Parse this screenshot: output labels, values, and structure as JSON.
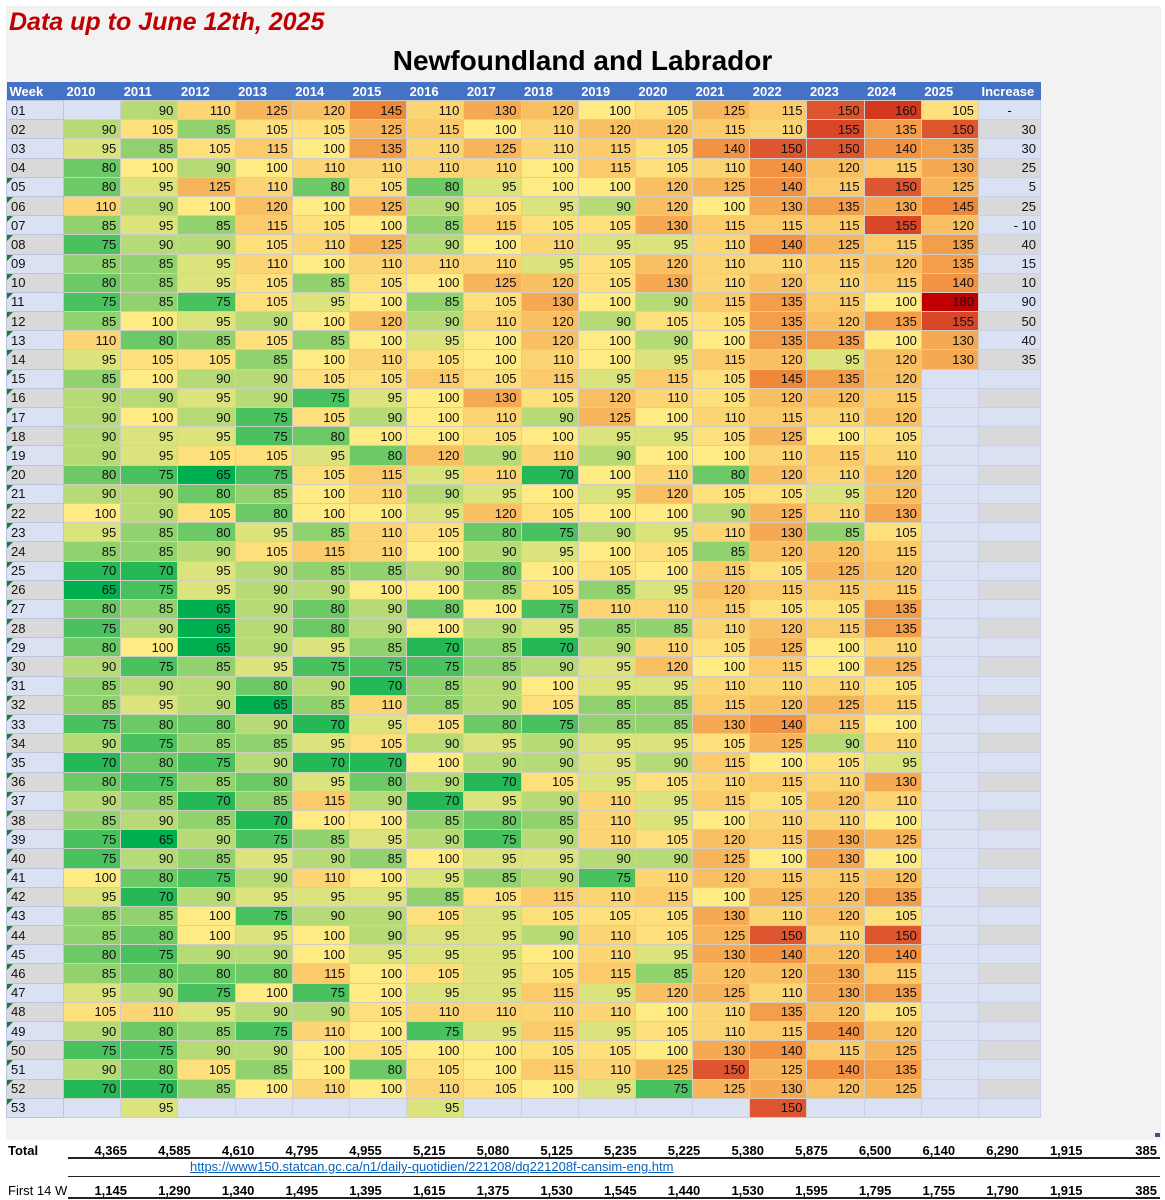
{
  "subtitle": "Data up to June 12th, 2025",
  "title": "Newfoundland and Labrador",
  "colors": {
    "header_bg": "#4472c4",
    "subtitle": "#c00000",
    "link": "#0563c1",
    "scale_low": "#00b050",
    "scale_mid": "#ffeb84",
    "scale_high": "#c00000"
  },
  "headers": [
    "Week",
    "2010",
    "2011",
    "2012",
    "2013",
    "2014",
    "2015",
    "2016",
    "2017",
    "2018",
    "2019",
    "2020",
    "2021",
    "2022",
    "2023",
    "2024",
    "2025",
    "Increase"
  ],
  "rows": [
    {
      "week": "01",
      "values": [
        null,
        90,
        110,
        125,
        120,
        145,
        110,
        130,
        120,
        100,
        105,
        125,
        115,
        150,
        160,
        105
      ],
      "increase": "-"
    },
    {
      "week": "02",
      "values": [
        90,
        105,
        85,
        105,
        105,
        125,
        115,
        100,
        110,
        120,
        120,
        115,
        110,
        155,
        135,
        150
      ],
      "increase": "30"
    },
    {
      "week": "03",
      "values": [
        95,
        85,
        105,
        115,
        100,
        135,
        110,
        125,
        110,
        115,
        105,
        140,
        150,
        150,
        140,
        135
      ],
      "increase": "30"
    },
    {
      "week": "04",
      "values": [
        80,
        100,
        90,
        100,
        110,
        110,
        110,
        110,
        100,
        115,
        105,
        110,
        140,
        120,
        115,
        130
      ],
      "increase": "25"
    },
    {
      "week": "05",
      "values": [
        80,
        95,
        125,
        110,
        80,
        105,
        80,
        95,
        100,
        100,
        120,
        125,
        140,
        115,
        150,
        125
      ],
      "increase": "5"
    },
    {
      "week": "06",
      "values": [
        110,
        90,
        100,
        120,
        100,
        125,
        90,
        105,
        95,
        90,
        120,
        100,
        130,
        135,
        130,
        145
      ],
      "increase": "25"
    },
    {
      "week": "07",
      "values": [
        85,
        95,
        85,
        115,
        105,
        100,
        85,
        115,
        105,
        105,
        130,
        115,
        115,
        115,
        155,
        120
      ],
      "increase": "- 10"
    },
    {
      "week": "08",
      "values": [
        75,
        90,
        90,
        105,
        110,
        125,
        90,
        100,
        110,
        95,
        95,
        110,
        140,
        125,
        115,
        135
      ],
      "increase": "40"
    },
    {
      "week": "09",
      "values": [
        85,
        85,
        95,
        110,
        100,
        110,
        110,
        110,
        95,
        105,
        120,
        110,
        110,
        115,
        120,
        135
      ],
      "increase": "15"
    },
    {
      "week": "10",
      "values": [
        80,
        85,
        95,
        105,
        85,
        105,
        100,
        125,
        120,
        105,
        130,
        110,
        120,
        110,
        115,
        140
      ],
      "increase": "10"
    },
    {
      "week": "11",
      "values": [
        75,
        85,
        75,
        105,
        95,
        100,
        85,
        105,
        130,
        100,
        90,
        115,
        135,
        115,
        100,
        180
      ],
      "increase": "90"
    },
    {
      "week": "12",
      "values": [
        85,
        100,
        95,
        90,
        100,
        120,
        90,
        110,
        120,
        90,
        105,
        105,
        135,
        120,
        135,
        155
      ],
      "increase": "50"
    },
    {
      "week": "13",
      "values": [
        110,
        80,
        85,
        105,
        85,
        100,
        95,
        100,
        120,
        100,
        90,
        100,
        135,
        135,
        100,
        130
      ],
      "increase": "40"
    },
    {
      "week": "14",
      "values": [
        95,
        105,
        105,
        85,
        100,
        110,
        105,
        100,
        110,
        100,
        95,
        115,
        120,
        95,
        120,
        130
      ],
      "increase": "35"
    },
    {
      "week": "15",
      "values": [
        85,
        100,
        90,
        90,
        105,
        105,
        115,
        105,
        115,
        95,
        115,
        105,
        145,
        135,
        120,
        null
      ],
      "increase": ""
    },
    {
      "week": "16",
      "values": [
        90,
        90,
        95,
        90,
        75,
        95,
        100,
        130,
        105,
        120,
        110,
        105,
        120,
        120,
        115,
        null
      ],
      "increase": ""
    },
    {
      "week": "17",
      "values": [
        90,
        100,
        90,
        75,
        105,
        90,
        100,
        110,
        90,
        125,
        100,
        110,
        115,
        110,
        120,
        null
      ],
      "increase": ""
    },
    {
      "week": "18",
      "values": [
        90,
        95,
        95,
        75,
        80,
        100,
        100,
        105,
        100,
        95,
        95,
        105,
        125,
        100,
        105,
        null
      ],
      "increase": ""
    },
    {
      "week": "19",
      "values": [
        90,
        95,
        105,
        105,
        95,
        80,
        120,
        90,
        110,
        90,
        100,
        100,
        110,
        115,
        110,
        null
      ],
      "increase": ""
    },
    {
      "week": "20",
      "values": [
        80,
        75,
        65,
        75,
        105,
        115,
        95,
        110,
        70,
        100,
        110,
        80,
        120,
        110,
        120,
        null
      ],
      "increase": ""
    },
    {
      "week": "21",
      "values": [
        90,
        90,
        80,
        85,
        100,
        110,
        90,
        95,
        100,
        95,
        120,
        105,
        105,
        95,
        120,
        null
      ],
      "increase": ""
    },
    {
      "week": "22",
      "values": [
        100,
        90,
        105,
        80,
        100,
        100,
        95,
        120,
        105,
        100,
        100,
        90,
        125,
        110,
        130,
        null
      ],
      "increase": ""
    },
    {
      "week": "23",
      "values": [
        95,
        85,
        80,
        95,
        85,
        110,
        105,
        80,
        75,
        90,
        95,
        110,
        130,
        85,
        105,
        null
      ],
      "increase": ""
    },
    {
      "week": "24",
      "values": [
        85,
        85,
        90,
        105,
        115,
        110,
        100,
        90,
        95,
        100,
        105,
        85,
        120,
        120,
        115,
        null
      ],
      "increase": ""
    },
    {
      "week": "25",
      "values": [
        70,
        70,
        95,
        90,
        85,
        85,
        90,
        80,
        100,
        105,
        100,
        115,
        105,
        125,
        120,
        null
      ],
      "increase": ""
    },
    {
      "week": "26",
      "values": [
        65,
        75,
        95,
        90,
        90,
        100,
        100,
        85,
        105,
        85,
        95,
        120,
        115,
        115,
        115,
        null
      ],
      "increase": ""
    },
    {
      "week": "27",
      "values": [
        80,
        85,
        65,
        90,
        80,
        90,
        80,
        100,
        75,
        110,
        110,
        115,
        105,
        105,
        135,
        null
      ],
      "increase": ""
    },
    {
      "week": "28",
      "values": [
        75,
        90,
        65,
        90,
        80,
        90,
        100,
        90,
        95,
        85,
        85,
        110,
        120,
        115,
        135,
        null
      ],
      "increase": ""
    },
    {
      "week": "29",
      "values": [
        80,
        100,
        65,
        90,
        95,
        85,
        70,
        85,
        70,
        90,
        110,
        105,
        125,
        100,
        110,
        null
      ],
      "increase": ""
    },
    {
      "week": "30",
      "values": [
        90,
        75,
        85,
        95,
        75,
        75,
        75,
        85,
        90,
        95,
        120,
        100,
        115,
        100,
        125,
        null
      ],
      "increase": ""
    },
    {
      "week": "31",
      "values": [
        85,
        90,
        90,
        80,
        90,
        70,
        85,
        90,
        100,
        95,
        95,
        110,
        110,
        110,
        105,
        null
      ],
      "increase": ""
    },
    {
      "week": "32",
      "values": [
        85,
        95,
        90,
        65,
        85,
        110,
        85,
        90,
        105,
        85,
        85,
        115,
        120,
        125,
        115,
        null
      ],
      "increase": ""
    },
    {
      "week": "33",
      "values": [
        75,
        80,
        80,
        90,
        70,
        95,
        105,
        80,
        75,
        85,
        85,
        130,
        140,
        115,
        100,
        null
      ],
      "increase": ""
    },
    {
      "week": "34",
      "values": [
        90,
        75,
        85,
        85,
        95,
        105,
        90,
        95,
        90,
        95,
        95,
        105,
        125,
        90,
        110,
        null
      ],
      "increase": ""
    },
    {
      "week": "35",
      "values": [
        70,
        80,
        75,
        90,
        70,
        70,
        100,
        90,
        90,
        95,
        90,
        115,
        100,
        105,
        95,
        null
      ],
      "increase": ""
    },
    {
      "week": "36",
      "values": [
        80,
        75,
        85,
        80,
        95,
        80,
        90,
        70,
        105,
        95,
        105,
        110,
        115,
        110,
        130,
        null
      ],
      "increase": ""
    },
    {
      "week": "37",
      "values": [
        90,
        85,
        70,
        85,
        115,
        90,
        70,
        95,
        90,
        110,
        95,
        115,
        105,
        120,
        110,
        null
      ],
      "increase": ""
    },
    {
      "week": "38",
      "values": [
        85,
        90,
        85,
        70,
        100,
        100,
        85,
        80,
        85,
        110,
        95,
        100,
        110,
        110,
        100,
        null
      ],
      "increase": ""
    },
    {
      "week": "39",
      "values": [
        75,
        65,
        90,
        75,
        85,
        95,
        90,
        75,
        90,
        110,
        105,
        120,
        115,
        130,
        125,
        null
      ],
      "increase": ""
    },
    {
      "week": "40",
      "values": [
        75,
        90,
        85,
        95,
        90,
        85,
        100,
        95,
        95,
        90,
        90,
        125,
        100,
        130,
        100,
        null
      ],
      "increase": ""
    },
    {
      "week": "41",
      "values": [
        100,
        80,
        75,
        90,
        110,
        100,
        95,
        85,
        90,
        75,
        110,
        120,
        115,
        115,
        120,
        null
      ],
      "increase": ""
    },
    {
      "week": "42",
      "values": [
        95,
        70,
        90,
        95,
        95,
        95,
        85,
        105,
        115,
        110,
        115,
        100,
        125,
        120,
        135,
        null
      ],
      "increase": ""
    },
    {
      "week": "43",
      "values": [
        85,
        85,
        100,
        75,
        90,
        90,
        105,
        95,
        105,
        105,
        105,
        130,
        110,
        120,
        105,
        null
      ],
      "increase": ""
    },
    {
      "week": "44",
      "values": [
        85,
        80,
        100,
        95,
        100,
        90,
        95,
        95,
        90,
        110,
        105,
        125,
        150,
        110,
        150,
        null
      ],
      "increase": ""
    },
    {
      "week": "45",
      "values": [
        80,
        75,
        90,
        90,
        100,
        95,
        95,
        95,
        100,
        110,
        95,
        130,
        140,
        120,
        140,
        null
      ],
      "increase": ""
    },
    {
      "week": "46",
      "values": [
        85,
        80,
        80,
        80,
        115,
        100,
        105,
        95,
        105,
        115,
        85,
        120,
        120,
        130,
        115,
        null
      ],
      "increase": ""
    },
    {
      "week": "47",
      "values": [
        95,
        90,
        75,
        100,
        75,
        100,
        95,
        95,
        115,
        95,
        120,
        125,
        110,
        130,
        135,
        null
      ],
      "increase": ""
    },
    {
      "week": "48",
      "values": [
        105,
        110,
        95,
        90,
        90,
        105,
        110,
        110,
        110,
        110,
        100,
        110,
        135,
        120,
        105,
        null
      ],
      "increase": ""
    },
    {
      "week": "49",
      "values": [
        90,
        80,
        85,
        75,
        110,
        100,
        75,
        95,
        115,
        95,
        105,
        110,
        115,
        140,
        120,
        null
      ],
      "increase": ""
    },
    {
      "week": "50",
      "values": [
        75,
        75,
        90,
        90,
        100,
        105,
        100,
        100,
        105,
        105,
        100,
        130,
        140,
        115,
        125,
        null
      ],
      "increase": ""
    },
    {
      "week": "51",
      "values": [
        90,
        80,
        105,
        85,
        100,
        80,
        105,
        100,
        115,
        110,
        125,
        150,
        125,
        140,
        135,
        null
      ],
      "increase": ""
    },
    {
      "week": "52",
      "values": [
        70,
        70,
        85,
        100,
        110,
        100,
        110,
        105,
        100,
        95,
        75,
        125,
        130,
        120,
        125,
        null
      ],
      "increase": ""
    },
    {
      "week": "53",
      "values": [
        null,
        95,
        null,
        null,
        null,
        null,
        95,
        null,
        null,
        null,
        null,
        null,
        150,
        null,
        null,
        null
      ],
      "increase": ""
    }
  ],
  "totals": {
    "label": "Total",
    "values": [
      "4,365",
      "4,585",
      "4,610",
      "4,795",
      "4,955",
      "5,215",
      "5,080",
      "5,125",
      "5,235",
      "5,225",
      "5,380",
      "5,875",
      "6,500",
      "6,140",
      "6,290",
      "1,915",
      "385"
    ]
  },
  "source_link": "https://www150.statcan.gc.ca/n1/daily-quotidien/221208/dq221208f-cansim-eng.htm",
  "first14": {
    "label": "First 14 W",
    "values": [
      "1,145",
      "1,290",
      "1,340",
      "1,495",
      "1,395",
      "1,615",
      "1,375",
      "1,530",
      "1,545",
      "1,440",
      "1,530",
      "1,595",
      "1,795",
      "1,755",
      "1,790",
      "1,915",
      "385"
    ]
  }
}
